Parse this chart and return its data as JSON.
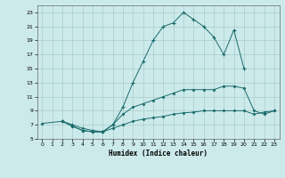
{
  "xlabel": "Humidex (Indice chaleur)",
  "background_color": "#cceaea",
  "grid_color": "#aacccc",
  "line_color": "#1a6b6b",
  "xlim": [
    -0.5,
    23.5
  ],
  "ylim": [
    5,
    24
  ],
  "xticks": [
    0,
    1,
    2,
    3,
    4,
    5,
    6,
    7,
    8,
    9,
    10,
    11,
    12,
    13,
    14,
    15,
    16,
    17,
    18,
    19,
    20,
    21,
    22,
    23
  ],
  "yticks": [
    5,
    7,
    9,
    11,
    13,
    15,
    17,
    19,
    21,
    23
  ],
  "line1_x": [
    2,
    3,
    4,
    5,
    6,
    7,
    8,
    9,
    10,
    11,
    12,
    13,
    14,
    15,
    16,
    17,
    18,
    19,
    20
  ],
  "line1_y": [
    7.5,
    7.0,
    6.5,
    6.2,
    6.0,
    7.0,
    9.5,
    13.0,
    16.0,
    19.0,
    21.0,
    21.5,
    23.0,
    22.0,
    21.0,
    19.5,
    17.0,
    20.5,
    15.0
  ],
  "line2_x": [
    2,
    3,
    4,
    5,
    6,
    7,
    8,
    9,
    10,
    11,
    12,
    13,
    14,
    15,
    16,
    17,
    18,
    19,
    20,
    21,
    22,
    23
  ],
  "line2_y": [
    7.5,
    6.8,
    6.2,
    6.0,
    6.0,
    7.0,
    8.5,
    9.5,
    10.0,
    10.5,
    11.0,
    11.5,
    12.0,
    12.0,
    12.0,
    12.0,
    12.5,
    12.5,
    12.2,
    9.0,
    8.5,
    9.0
  ],
  "line3_x": [
    0,
    2,
    3,
    4,
    5,
    6,
    7,
    8,
    9,
    10,
    11,
    12,
    13,
    14,
    15,
    16,
    17,
    18,
    19,
    20,
    21,
    22,
    23
  ],
  "line3_y": [
    7.2,
    7.5,
    6.8,
    6.2,
    6.0,
    6.0,
    6.5,
    7.0,
    7.5,
    7.8,
    8.0,
    8.2,
    8.5,
    8.7,
    8.8,
    9.0,
    9.0,
    9.0,
    9.0,
    9.0,
    8.5,
    8.8,
    9.0
  ]
}
